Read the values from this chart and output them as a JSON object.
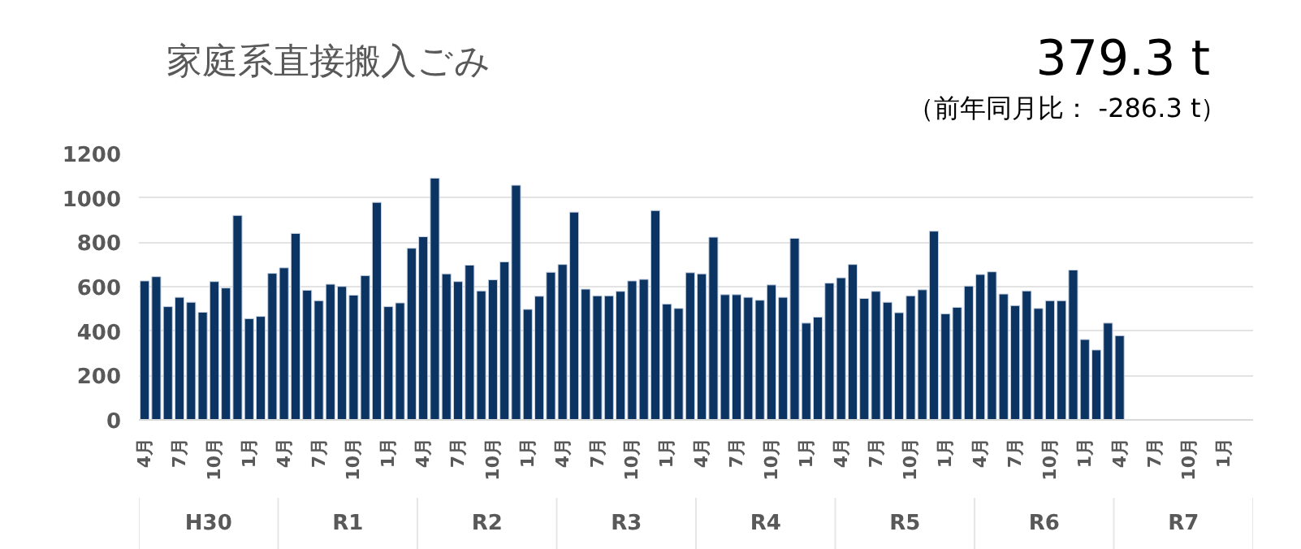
{
  "chart_data": {
    "type": "bar",
    "title": "家庭系直接搬入ごみ",
    "annotations": [
      "379.3 t",
      "（前年同月比： -286.3 t）",
      "H30",
      "R1",
      "R2",
      "R3",
      "R4",
      "R5",
      "R6",
      "R7"
    ],
    "categories": [
      "4月",
      null,
      null,
      "7月",
      null,
      null,
      "10月",
      null,
      null,
      "1月",
      null,
      null,
      "4月",
      null,
      null,
      "7月",
      null,
      null,
      "10月",
      null,
      null,
      "1月",
      null,
      null,
      "4月",
      null,
      null,
      "7月",
      null,
      null,
      "10月",
      null,
      null,
      "1月",
      null,
      null,
      "4月",
      null,
      null,
      "7月",
      null,
      null,
      "10月",
      null,
      null,
      "1月",
      null,
      null,
      "4月",
      null,
      null,
      "7月",
      null,
      null,
      "10月",
      null,
      null,
      "1月",
      null,
      null,
      "4月",
      null,
      null,
      "7月",
      null,
      null,
      "10月",
      null,
      null,
      "1月",
      null,
      null,
      "4月",
      null,
      null,
      "7月",
      null,
      null,
      "10月",
      null,
      null,
      "1月",
      null,
      null,
      "4月",
      null,
      null,
      "7月",
      null,
      null,
      "10月",
      null,
      null,
      "1月",
      null,
      null
    ],
    "values": [
      626,
      645,
      510,
      552,
      530,
      485,
      623,
      594,
      921,
      456,
      466,
      660,
      685,
      840,
      584,
      537,
      611,
      601,
      562,
      650,
      980,
      510,
      527,
      773,
      825,
      1089,
      658,
      623,
      697,
      581,
      631,
      712,
      1057,
      498,
      557,
      665,
      700,
      936,
      589,
      559,
      559,
      579,
      626,
      633,
      943,
      522,
      502,
      663,
      658,
      823,
      564,
      564,
      552,
      539,
      608,
      552,
      818,
      436,
      463,
      616,
      640,
      700,
      547,
      579,
      530,
      483,
      559,
      586,
      850,
      478,
      507,
      603,
      655,
      667,
      567,
      515,
      581,
      502,
      537,
      537,
      675,
      362,
      315,
      436,
      379.3,
      null,
      null,
      null,
      null,
      null,
      null,
      null,
      null,
      null,
      null,
      null
    ],
    "color": "#0b3463",
    "ylim": [
      0,
      1200
    ],
    "yticks": [
      0,
      200,
      400,
      600,
      800,
      1000,
      1200
    ],
    "grid": "y"
  }
}
